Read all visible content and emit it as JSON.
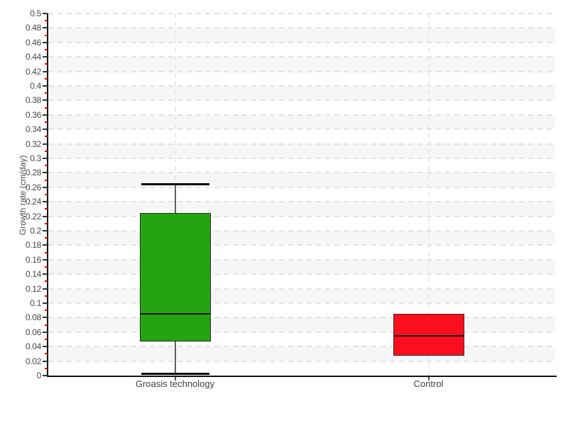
{
  "chart_data": {
    "type": "box",
    "title": "",
    "xlabel": "",
    "ylabel": "Growth rate (cm/day)",
    "ylim": [
      0,
      0.5
    ],
    "y_major_step": 0.02,
    "y_minor_step": 0.01,
    "grid": "horizontal dashed gridlines every 0.02, alternating light-gray bands, dashed vertical line at each category center",
    "legend": "none",
    "y_ticks": [
      "0",
      "0.02",
      "0.04",
      "0.06",
      "0.08",
      "0.1",
      "0.12",
      "0.14",
      "0.16",
      "0.18",
      "0.2",
      "0.22",
      "0.24",
      "0.26",
      "0.28",
      "0.3",
      "0.32",
      "0.34",
      "0.36",
      "0.38",
      "0.4",
      "0.42",
      "0.44",
      "0.46",
      "0.48",
      "0.5"
    ],
    "categories": [
      "Groasis technology",
      "Control"
    ],
    "series": [
      {
        "name": "Groasis technology",
        "color": "#23a410",
        "min": 0.003,
        "q1": 0.047,
        "median": 0.085,
        "q3": 0.225,
        "max": 0.265
      },
      {
        "name": "Control",
        "color": "#fb0f1e",
        "min": null,
        "q1": 0.027,
        "median": 0.055,
        "q3": 0.085,
        "max": null
      }
    ]
  },
  "colors": {
    "band_gray": "#f6f6f6",
    "grid_dash": "#e2e2e2",
    "minor_tick_red": "#e60000",
    "axis_black": "#111111",
    "label_gray": "#474747",
    "box_green": "#23a410",
    "box_red": "#fb0f1e"
  }
}
